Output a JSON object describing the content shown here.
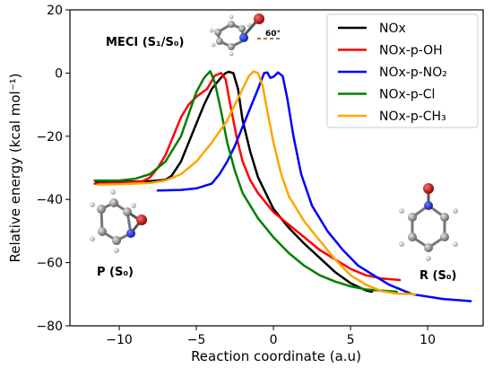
{
  "chart_data": {
    "type": "line",
    "xlabel": "Reaction coordinate (a.u)",
    "ylabel": "Relative energy (kcal mol⁻¹)",
    "xlim": [
      -13.2,
      13.6
    ],
    "ylim": [
      -80,
      20
    ],
    "xticks": [
      -10,
      -5,
      0,
      5,
      10
    ],
    "yticks": [
      20,
      0,
      -20,
      -40,
      -60,
      -80
    ],
    "legend_position": "top-right",
    "series": [
      {
        "name": "NOx",
        "color": "#000000",
        "points": [
          [
            -11.5,
            -34.5
          ],
          [
            -10,
            -34.5
          ],
          [
            -8,
            -34.2
          ],
          [
            -7,
            -33.8
          ],
          [
            -6.6,
            -32.5
          ],
          [
            -6,
            -28
          ],
          [
            -5.5,
            -22
          ],
          [
            -5,
            -16
          ],
          [
            -4.5,
            -10
          ],
          [
            -4,
            -5
          ],
          [
            -3.5,
            -2
          ],
          [
            -3.1,
            0
          ],
          [
            -2.9,
            0.4
          ],
          [
            -2.6,
            0
          ],
          [
            -2.3,
            -5
          ],
          [
            -2,
            -15
          ],
          [
            -1.5,
            -25
          ],
          [
            -1,
            -33
          ],
          [
            -0.5,
            -38
          ],
          [
            0,
            -43
          ],
          [
            1,
            -49
          ],
          [
            2,
            -54
          ],
          [
            3,
            -58.5
          ],
          [
            4,
            -63
          ],
          [
            5,
            -66.5
          ],
          [
            6,
            -68.8
          ],
          [
            6.4,
            -69.2
          ]
        ]
      },
      {
        "name": "NOx-p-OH",
        "color": "#ff0000",
        "series_label_glyph": "",
        "points": [
          [
            -11.6,
            -35
          ],
          [
            -10,
            -34.8
          ],
          [
            -8.5,
            -34.3
          ],
          [
            -8,
            -33
          ],
          [
            -7.5,
            -30
          ],
          [
            -7,
            -26
          ],
          [
            -6.5,
            -20
          ],
          [
            -6,
            -14
          ],
          [
            -5.5,
            -10
          ],
          [
            -5,
            -7.5
          ],
          [
            -4.3,
            -5
          ],
          [
            -3.8,
            -0.8
          ],
          [
            -3.4,
            0
          ],
          [
            -3.1,
            -2
          ],
          [
            -2.8,
            -10
          ],
          [
            -2.4,
            -20
          ],
          [
            -2,
            -28
          ],
          [
            -1.5,
            -34
          ],
          [
            -1,
            -38
          ],
          [
            0,
            -44
          ],
          [
            1,
            -48
          ],
          [
            2,
            -52
          ],
          [
            3,
            -56
          ],
          [
            4,
            -59
          ],
          [
            5,
            -62
          ],
          [
            6,
            -64
          ],
          [
            7,
            -65
          ],
          [
            8.2,
            -65.5
          ]
        ]
      },
      {
        "name": "NOx-p-NO₂",
        "color": "#0000ff",
        "points": [
          [
            -7.5,
            -37.2
          ],
          [
            -6,
            -37
          ],
          [
            -5,
            -36.5
          ],
          [
            -4,
            -35
          ],
          [
            -3.5,
            -32
          ],
          [
            -3,
            -28
          ],
          [
            -2.5,
            -23
          ],
          [
            -2,
            -17
          ],
          [
            -1.5,
            -11
          ],
          [
            -1,
            -5
          ],
          [
            -0.6,
            0
          ],
          [
            -0.4,
            0.2
          ],
          [
            -0.2,
            -1.5
          ],
          [
            0,
            -1.2
          ],
          [
            0.3,
            0.2
          ],
          [
            0.6,
            -1
          ],
          [
            0.9,
            -8
          ],
          [
            1.3,
            -20
          ],
          [
            1.8,
            -32
          ],
          [
            2.5,
            -42
          ],
          [
            3.5,
            -50
          ],
          [
            4.5,
            -56
          ],
          [
            5.5,
            -61
          ],
          [
            6.5,
            -64
          ],
          [
            7.5,
            -67
          ],
          [
            9,
            -70
          ],
          [
            11,
            -71.5
          ],
          [
            12.8,
            -72.2
          ]
        ]
      },
      {
        "name": "NOx-p-Cl",
        "color": "#008000",
        "points": [
          [
            -11.6,
            -34
          ],
          [
            -10,
            -34
          ],
          [
            -9,
            -33.5
          ],
          [
            -8,
            -32
          ],
          [
            -7,
            -28
          ],
          [
            -6,
            -20
          ],
          [
            -5.5,
            -13
          ],
          [
            -5,
            -6
          ],
          [
            -4.5,
            -1.5
          ],
          [
            -4.1,
            0.6
          ],
          [
            -3.8,
            -3
          ],
          [
            -3.4,
            -12
          ],
          [
            -3,
            -22
          ],
          [
            -2.5,
            -31
          ],
          [
            -2,
            -38
          ],
          [
            -1,
            -46
          ],
          [
            0,
            -52
          ],
          [
            1,
            -57
          ],
          [
            2,
            -61
          ],
          [
            3,
            -64
          ],
          [
            4,
            -66
          ],
          [
            5,
            -67.5
          ],
          [
            6,
            -68.5
          ],
          [
            8,
            -69.2
          ]
        ]
      },
      {
        "name": "NOx-p-CH₃",
        "color": "#ffa500",
        "points": [
          [
            -11.4,
            -35.3
          ],
          [
            -10,
            -35.2
          ],
          [
            -8,
            -34.8
          ],
          [
            -7,
            -34
          ],
          [
            -6,
            -32
          ],
          [
            -5,
            -28
          ],
          [
            -4,
            -22
          ],
          [
            -3,
            -15
          ],
          [
            -2.5,
            -10
          ],
          [
            -2,
            -5
          ],
          [
            -1.6,
            -1
          ],
          [
            -1.3,
            0.5
          ],
          [
            -1.0,
            0
          ],
          [
            -0.7,
            -4
          ],
          [
            -0.4,
            -12
          ],
          [
            0,
            -22
          ],
          [
            0.5,
            -32
          ],
          [
            1,
            -39
          ],
          [
            2,
            -47
          ],
          [
            3,
            -53
          ],
          [
            4,
            -59
          ],
          [
            5,
            -64
          ],
          [
            6,
            -67
          ],
          [
            7,
            -69
          ],
          [
            8,
            -69.8
          ],
          [
            9.2,
            -70
          ]
        ]
      }
    ],
    "annotations": {
      "meci": "MECI (S₁/S₀)",
      "angle": "60°",
      "product": "P (S₀)",
      "reactant": "R (S₀)"
    }
  }
}
